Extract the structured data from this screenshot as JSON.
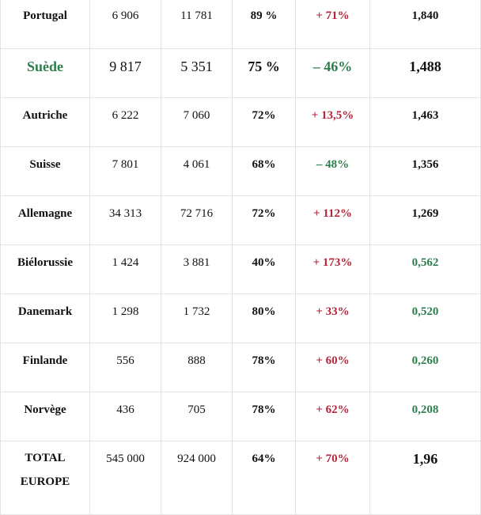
{
  "rows": [
    {
      "country": "Portugal",
      "v1": "6 906",
      "v2": "11 781",
      "pct": "89 %",
      "change": "+ 71%",
      "change_color": "red",
      "index": "1,840",
      "index_color": "black"
    },
    {
      "country": "Suède",
      "v1": "9 817",
      "v2": "5 351",
      "pct": "75 %",
      "change": "– 46%",
      "change_color": "green",
      "index": "1,488",
      "index_color": "black"
    },
    {
      "country": "Autriche",
      "v1": "6 222",
      "v2": "7 060",
      "pct": "72%",
      "change": "+ 13,5%",
      "change_color": "red",
      "index": "1,463",
      "index_color": "black"
    },
    {
      "country": "Suisse",
      "v1": "7 801",
      "v2": "4 061",
      "pct": "68%",
      "change": "– 48%",
      "change_color": "green",
      "index": "1,356",
      "index_color": "black"
    },
    {
      "country": "Allemagne",
      "v1": "34 313",
      "v2": "72 716",
      "pct": "72%",
      "change": "+ 112%",
      "change_color": "red",
      "index": "1,269",
      "index_color": "black"
    },
    {
      "country": "Biélorussie",
      "v1": "1 424",
      "v2": "3 881",
      "pct": "40%",
      "change": "+ 173%",
      "change_color": "red",
      "index": "0,562",
      "index_color": "green"
    },
    {
      "country": "Danemark",
      "v1": "1 298",
      "v2": "1 732",
      "pct": "80%",
      "change": "+ 33%",
      "change_color": "red",
      "index": "0,520",
      "index_color": "green"
    },
    {
      "country": "Finlande",
      "v1": "556",
      "v2": "888",
      "pct": "78%",
      "change": "+ 60%",
      "change_color": "red",
      "index": "0,260",
      "index_color": "green"
    },
    {
      "country": "Norvège",
      "v1": "436",
      "v2": "705",
      "pct": "78%",
      "change": "+ 62%",
      "change_color": "red",
      "index": "0,208",
      "index_color": "green"
    }
  ],
  "total": {
    "label_line1": "TOTAL",
    "label_line2": "EUROPE",
    "v1": "545 000",
    "v2": "924 000",
    "pct": "64%",
    "change": "+ 70%",
    "index": "1,96"
  },
  "colors": {
    "red": "#b3263a",
    "green": "#2f7d4d",
    "border": "#e3e3e3"
  }
}
